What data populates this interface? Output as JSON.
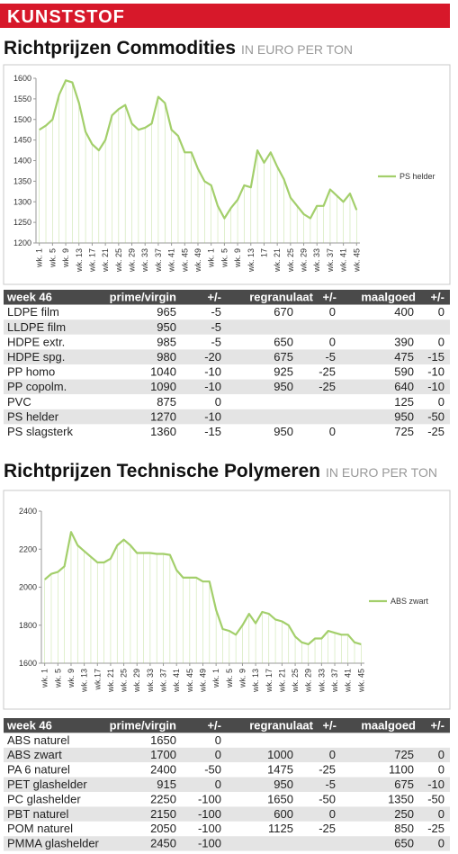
{
  "header": "KUNSTSTOF",
  "sections": [
    {
      "title": "Richtprijzen Commodities",
      "unit": "IN EURO PER TON"
    },
    {
      "title": "Richtprijzen Technische Polymeren",
      "unit": "IN EURO PER TON"
    }
  ],
  "chart_data": [
    {
      "type": "line",
      "drop_lines": true,
      "legend": "right",
      "categories": [
        "wk. 1",
        null,
        "wk. 5",
        null,
        "wk. 9",
        null,
        "wk. 13",
        null,
        "wk. 17",
        null,
        "wk. 21",
        null,
        "wk. 25",
        null,
        "wk. 29",
        null,
        "wk. 33",
        null,
        "wk. 37",
        null,
        "wk. 41",
        null,
        "wk. 45",
        null,
        "wk. 49",
        null,
        "wk. 1",
        null,
        "wk. 5",
        null,
        "wk. 9",
        null,
        "wk. 13",
        null,
        "17",
        null,
        "wk. 21",
        null,
        "wk. 25",
        null,
        "wk. 29",
        null,
        "wk. 33",
        null,
        "wk. 37",
        null,
        "wk. 41",
        null,
        "wk. 45"
      ],
      "series": [
        {
          "name": "PS helder",
          "color": "#a3cf6b",
          "values": [
            1475,
            1485,
            1500,
            1560,
            1595,
            1590,
            1540,
            1470,
            1440,
            1425,
            1450,
            1510,
            1525,
            1535,
            1490,
            1475,
            1480,
            1490,
            1555,
            1540,
            1475,
            1460,
            1420,
            1420,
            1380,
            1350,
            1340,
            1290,
            1260,
            1285,
            1305,
            1340,
            1335,
            1425,
            1395,
            1420,
            1385,
            1355,
            1310,
            1290,
            1270,
            1260,
            1290,
            1290,
            1330,
            1315,
            1300,
            1320,
            1280
          ]
        }
      ],
      "ylim": [
        1200,
        1600
      ],
      "yticks": [
        1200,
        1250,
        1300,
        1350,
        1400,
        1450,
        1500,
        1550,
        1600
      ]
    },
    {
      "type": "line",
      "drop_lines": true,
      "legend": "right",
      "categories": [
        "wk. 1",
        null,
        "wk. 5",
        null,
        "wk. 9",
        null,
        "wk. 13",
        null,
        "wk.17",
        null,
        "wk. 21",
        null,
        "wk. 25",
        null,
        "wk. 29",
        null,
        "wk. 33",
        null,
        "wk. 37",
        null,
        "wk. 41",
        null,
        "wk. 45",
        null,
        "wk. 49",
        null,
        "wk. 1",
        null,
        "wk. 5",
        null,
        "wk. 9",
        null,
        "wk. 13",
        null,
        "wk. 17",
        null,
        "wk. 21",
        null,
        "wk. 25",
        null,
        "wk. 29",
        null,
        "wk. 33",
        null,
        "wk. 37",
        null,
        "wk. 41",
        null,
        "wk. 45"
      ],
      "series": [
        {
          "name": "ABS zwart",
          "color": "#a3cf6b",
          "values": [
            2040,
            2070,
            2080,
            2110,
            2290,
            2220,
            2190,
            2160,
            2130,
            2130,
            2150,
            2220,
            2250,
            2220,
            2180,
            2180,
            2180,
            2175,
            2175,
            2170,
            2090,
            2050,
            2050,
            2050,
            2030,
            2030,
            1880,
            1780,
            1770,
            1750,
            1800,
            1860,
            1810,
            1870,
            1860,
            1830,
            1820,
            1800,
            1740,
            1710,
            1700,
            1730,
            1730,
            1770,
            1760,
            1750,
            1750,
            1710,
            1700
          ]
        }
      ],
      "ylim": [
        1600,
        2400
      ],
      "yticks": [
        1600,
        1800,
        2000,
        2200,
        2400
      ]
    }
  ],
  "tables": [
    {
      "columns": [
        "week 46",
        "prime/virgin",
        "+/-",
        "regranulaat",
        "+/-",
        "maalgoed",
        "+/-"
      ],
      "rows": [
        [
          "LDPE film",
          965,
          -5,
          670,
          0,
          400,
          0
        ],
        [
          "LLDPE film",
          950,
          -5,
          null,
          null,
          null,
          null
        ],
        [
          "HDPE extr.",
          985,
          -5,
          650,
          0,
          390,
          0
        ],
        [
          "HDPE spg.",
          980,
          -20,
          675,
          -5,
          475,
          -15
        ],
        [
          "PP homo",
          1040,
          -10,
          925,
          -25,
          590,
          -10
        ],
        [
          "PP copolm.",
          1090,
          -10,
          950,
          -25,
          640,
          -10
        ],
        [
          "PVC",
          875,
          0,
          null,
          null,
          125,
          0
        ],
        [
          "PS helder",
          1270,
          -10,
          null,
          null,
          950,
          -50
        ],
        [
          "PS slagsterk",
          1360,
          -15,
          950,
          0,
          725,
          -25
        ]
      ]
    },
    {
      "columns": [
        "week 46",
        "prime/virgin",
        "+/-",
        "regranulaat",
        "+/-",
        "maalgoed",
        "+/-"
      ],
      "rows": [
        [
          "ABS naturel",
          1650,
          0,
          null,
          null,
          null,
          null
        ],
        [
          "ABS zwart",
          1700,
          0,
          1000,
          0,
          725,
          0
        ],
        [
          "PA 6 naturel",
          2400,
          -50,
          1475,
          -25,
          1100,
          0
        ],
        [
          "PET glashelder",
          915,
          0,
          950,
          -5,
          675,
          -10
        ],
        [
          "PC glashelder",
          2250,
          -100,
          1650,
          -50,
          1350,
          -50
        ],
        [
          "PBT naturel",
          2150,
          -100,
          600,
          0,
          250,
          0
        ],
        [
          "POM naturel",
          2050,
          -100,
          1125,
          -25,
          850,
          -25
        ],
        [
          "PMMA glashelder",
          2450,
          -100,
          null,
          null,
          650,
          0
        ]
      ]
    }
  ]
}
